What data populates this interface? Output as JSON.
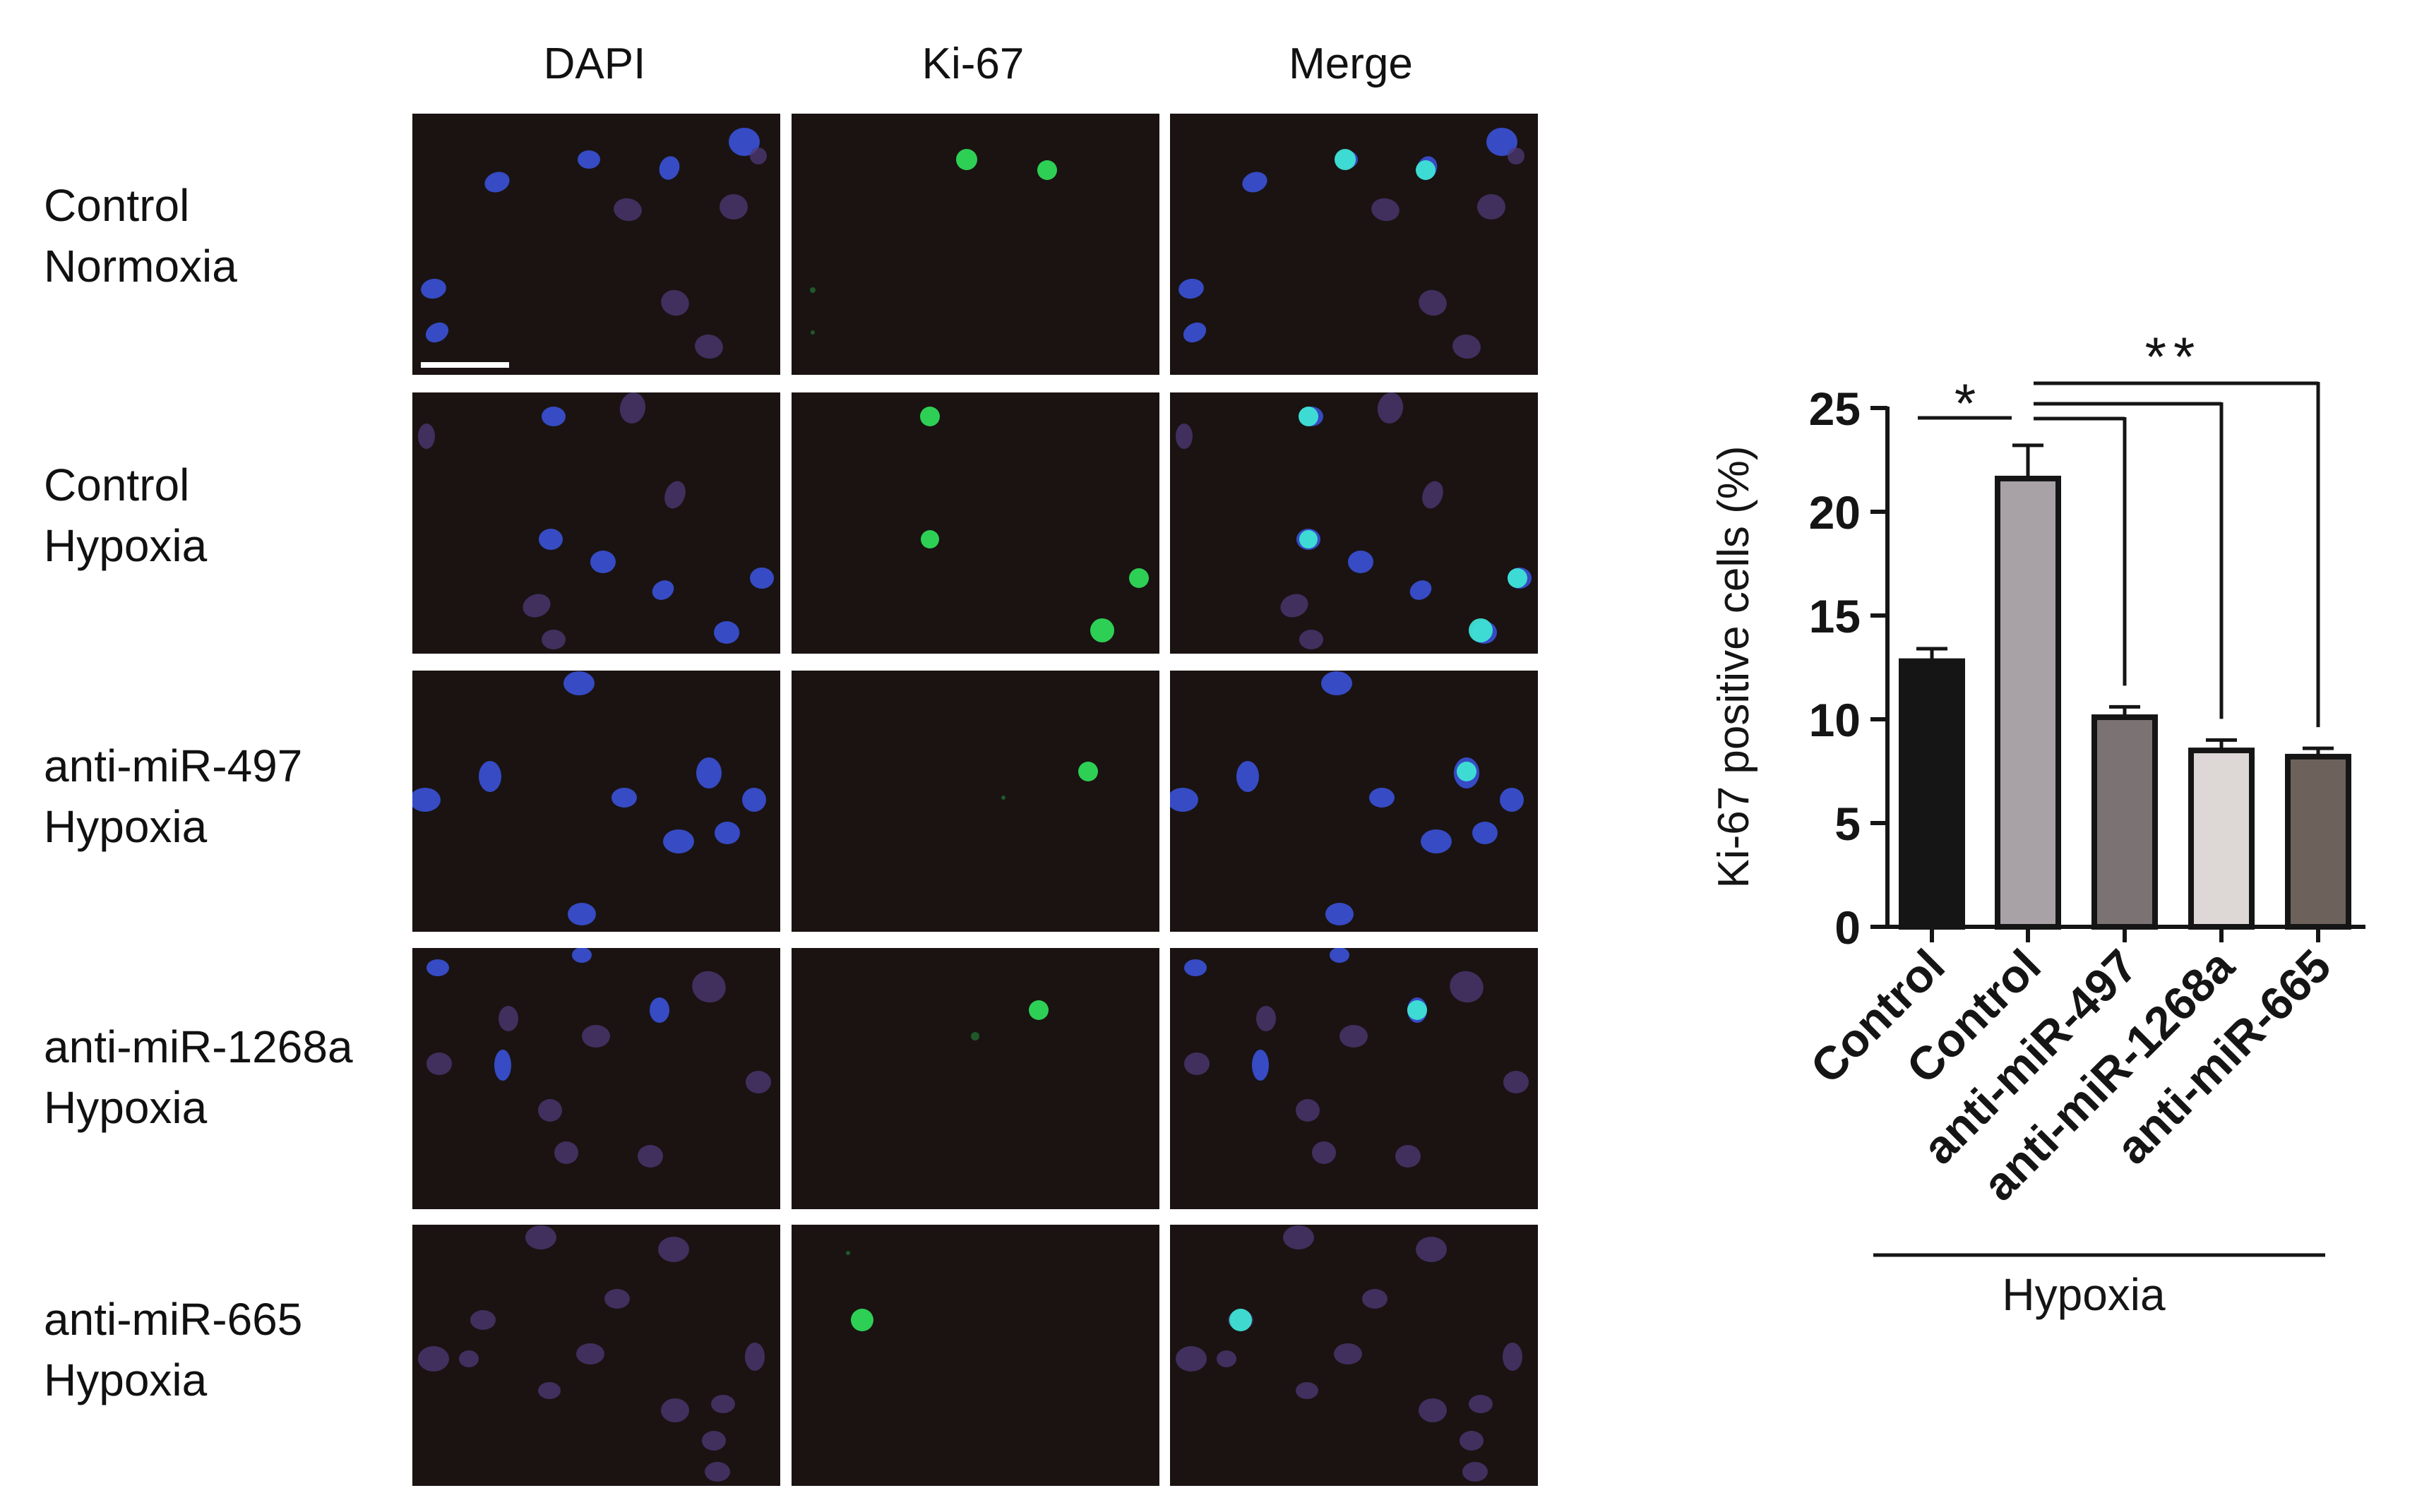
{
  "columns": [
    "DAPI",
    "Ki-67",
    "Merge"
  ],
  "rows": [
    {
      "line1": "Control",
      "line2": "Normoxia"
    },
    {
      "line1": "Control",
      "line2": "Hypoxia"
    },
    {
      "line1": "anti-miR-497",
      "line2": "Hypoxia"
    },
    {
      "line1": "anti-miR-1268a",
      "line2": "Hypoxia"
    },
    {
      "line1": "anti-miR-665",
      "line2": "Hypoxia"
    }
  ],
  "colors": {
    "panel_bg": "#1a1312",
    "nucleus_dim": "#4f3a78",
    "nucleus_bright": "#3a52d8",
    "ki67_green": "#2fd95a",
    "merge_cyan": "#3fe3d6"
  },
  "chart_data": {
    "type": "bar",
    "title": "",
    "ylabel": "Ki-67 positive cells (%)",
    "xlabel": "",
    "ylim": [
      0,
      25
    ],
    "yticks": [
      0,
      5,
      10,
      15,
      20,
      25
    ],
    "categories": [
      "Control",
      "Control",
      "anti-miR-497",
      "anti-miR-1268a",
      "anti-miR-665"
    ],
    "values": [
      12.8,
      21.6,
      10.1,
      8.5,
      8.2
    ],
    "errors": [
      0.6,
      1.6,
      0.5,
      0.5,
      0.4
    ],
    "bar_colors": [
      "#151515",
      "#a8a2a6",
      "#7a7273",
      "#ddd7d5",
      "#6d615b"
    ],
    "group_label": "Hypoxia",
    "significance": [
      {
        "label": "*",
        "from": 0,
        "to": 1
      },
      {
        "label": "**",
        "from": 1,
        "to": [
          2,
          3,
          4
        ]
      }
    ],
    "grid": false,
    "legend": "none"
  }
}
